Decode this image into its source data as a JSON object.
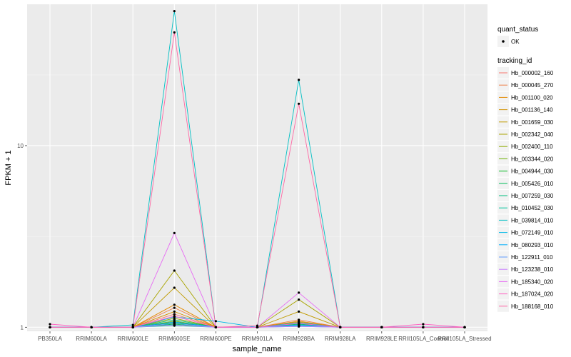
{
  "chart_data": {
    "type": "line",
    "xlabel": "sample_name",
    "ylabel": "FPKM + 1",
    "y_scale": "log10",
    "ylim": [
      0.95,
      60
    ],
    "y_ticks": [
      1,
      10
    ],
    "y_tick_labels": [
      "1",
      "10"
    ],
    "grid": true,
    "legend_position": "right",
    "categories": [
      "PB350LA",
      "RRIM600LA",
      "RRIM600LE",
      "RRIM600SE",
      "RRIM600PE",
      "RRIM901LA",
      "RRIM928BA",
      "RRIM928LA",
      "RRIM928LE",
      "RRII105LA_Control",
      "RRII105LA_Stressed"
    ],
    "point_legend": {
      "title": "quant_status",
      "entries": [
        "OK"
      ]
    },
    "line_legend_title": "tracking_id",
    "series": [
      {
        "name": "Hb_000002_160",
        "color": "#F8766D",
        "values": [
          1.0,
          1.0,
          1.0,
          1.18,
          1.0,
          1.0,
          1.05,
          1.0,
          1.0,
          1.0,
          1.0
        ]
      },
      {
        "name": "Hb_000045_270",
        "color": "#EF7F49",
        "values": [
          1.0,
          1.0,
          1.0,
          1.28,
          1.0,
          1.0,
          1.1,
          1.0,
          1.0,
          1.0,
          1.0
        ]
      },
      {
        "name": "Hb_001100_020",
        "color": "#E38900",
        "values": [
          1.0,
          1.0,
          1.0,
          1.33,
          1.0,
          1.0,
          1.08,
          1.0,
          1.0,
          1.0,
          1.0
        ]
      },
      {
        "name": "Hb_001136_140",
        "color": "#D39200",
        "values": [
          1.0,
          1.0,
          1.0,
          1.22,
          1.0,
          1.0,
          1.07,
          1.0,
          1.0,
          1.0,
          1.0
        ]
      },
      {
        "name": "Hb_001659_030",
        "color": "#C09B00",
        "values": [
          1.0,
          1.0,
          1.0,
          1.65,
          1.0,
          1.0,
          1.22,
          1.0,
          1.0,
          1.0,
          1.0
        ]
      },
      {
        "name": "Hb_002342_040",
        "color": "#A9A400",
        "values": [
          1.0,
          1.0,
          1.0,
          2.05,
          1.0,
          1.0,
          1.42,
          1.0,
          1.0,
          1.0,
          1.0
        ]
      },
      {
        "name": "Hb_002400_110",
        "color": "#8FAA00",
        "values": [
          1.0,
          1.0,
          1.0,
          1.12,
          1.0,
          1.0,
          1.04,
          1.0,
          1.0,
          1.0,
          1.0
        ]
      },
      {
        "name": "Hb_003344_020",
        "color": "#6BB100",
        "values": [
          1.0,
          1.0,
          1.0,
          1.08,
          1.0,
          1.0,
          1.03,
          1.0,
          1.0,
          1.0,
          1.0
        ]
      },
      {
        "name": "Hb_004944_030",
        "color": "#00B81F",
        "values": [
          1.0,
          1.0,
          1.0,
          1.06,
          1.0,
          1.0,
          1.02,
          1.0,
          1.0,
          1.0,
          1.0
        ]
      },
      {
        "name": "Hb_005426_010",
        "color": "#00BC59",
        "values": [
          1.0,
          1.0,
          1.0,
          1.04,
          1.0,
          1.0,
          1.02,
          1.0,
          1.0,
          1.0,
          1.0
        ]
      },
      {
        "name": "Hb_007259_030",
        "color": "#00BF7D",
        "values": [
          1.0,
          1.0,
          1.0,
          1.1,
          1.0,
          1.0,
          1.04,
          1.0,
          1.0,
          1.0,
          1.0
        ]
      },
      {
        "name": "Hb_010452_030",
        "color": "#00C19C",
        "values": [
          1.0,
          1.0,
          1.0,
          1.02,
          1.0,
          1.0,
          1.01,
          1.0,
          1.0,
          1.0,
          1.0
        ]
      },
      {
        "name": "Hb_039814_010",
        "color": "#00BFC4",
        "values": [
          1.0,
          1.0,
          1.03,
          55.0,
          1.0,
          1.0,
          23.0,
          1.0,
          1.0,
          1.0,
          1.0
        ]
      },
      {
        "name": "Hb_072149_010",
        "color": "#00B8E7",
        "values": [
          1.0,
          1.0,
          1.0,
          1.14,
          1.08,
          1.0,
          1.06,
          1.0,
          1.0,
          1.0,
          1.0
        ]
      },
      {
        "name": "Hb_080293_010",
        "color": "#00ADFA",
        "values": [
          1.0,
          1.0,
          1.0,
          1.07,
          1.0,
          1.0,
          1.03,
          1.0,
          1.0,
          1.0,
          1.0
        ]
      },
      {
        "name": "Hb_122911_010",
        "color": "#619CFF",
        "values": [
          1.0,
          1.0,
          1.0,
          1.05,
          1.0,
          1.0,
          1.02,
          1.0,
          1.0,
          1.0,
          1.0
        ]
      },
      {
        "name": "Hb_123238_010",
        "color": "#C77CFF",
        "values": [
          1.0,
          1.0,
          1.0,
          1.03,
          1.0,
          1.0,
          1.01,
          1.0,
          1.0,
          1.0,
          1.0
        ]
      },
      {
        "name": "Hb_185340_020",
        "color": "#E76BF3",
        "values": [
          1.0,
          1.0,
          1.0,
          3.3,
          1.0,
          1.0,
          1.55,
          1.0,
          1.0,
          1.0,
          1.0
        ]
      },
      {
        "name": "Hb_187024_020",
        "color": "#FF61C3",
        "values": [
          1.04,
          1.0,
          1.0,
          1.15,
          1.0,
          1.0,
          1.05,
          1.0,
          1.0,
          1.04,
          1.0
        ]
      },
      {
        "name": "Hb_188168_010",
        "color": "#FF67A4",
        "values": [
          1.0,
          1.0,
          1.0,
          42.0,
          1.0,
          1.02,
          17.0,
          1.0,
          1.0,
          1.0,
          1.0
        ]
      }
    ]
  }
}
